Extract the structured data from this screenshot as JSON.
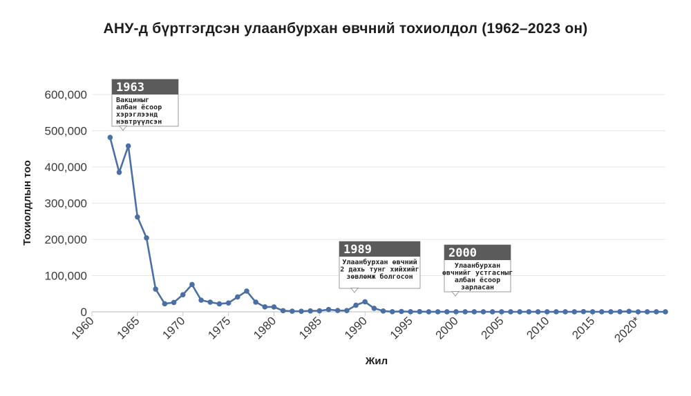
{
  "title": "АНУ-д бүртгэгдсэн улаанбурхан өвчний тохиолдол (1962–2023 он)",
  "colors": {
    "line": "#4a6fa5",
    "grid": "#e6e6e6",
    "axis": "#c8c8c8",
    "callout_header": "#5b5b5b",
    "callout_body": "#ffffff",
    "callout_border": "#9a9a9a"
  },
  "chart_data": {
    "type": "line",
    "title": "АНУ-д бүртгэгдсэн улаанбурхан өвчний тохиолдол (1962–2023 он)",
    "xlabel": "Жил",
    "ylabel": "Тохиолдлын тоо",
    "xlim": [
      1960,
      2023
    ],
    "ylim": [
      0,
      600000
    ],
    "grid": true,
    "x_ticks": [
      1960,
      1965,
      1970,
      1975,
      1980,
      1985,
      1990,
      1995,
      2000,
      2005,
      2010,
      2015,
      2020
    ],
    "x_tick_labels": [
      "1960",
      "1965",
      "1970",
      "1975",
      "1980",
      "1985",
      "1990",
      "1995",
      "2000",
      "2005",
      "2010",
      "2015",
      "2020*"
    ],
    "y_ticks": [
      0,
      100000,
      200000,
      300000,
      400000,
      500000,
      600000
    ],
    "y_tick_labels": [
      "0",
      "100,000",
      "200,000",
      "300,000",
      "400,000",
      "500,000",
      "600,000"
    ],
    "series": [
      {
        "x": [
          1962,
          1963,
          1964,
          1965,
          1966,
          1967,
          1968,
          1969,
          1970,
          1971,
          1972,
          1973,
          1974,
          1975,
          1976,
          1977,
          1978,
          1979,
          1980,
          1981,
          1982,
          1983,
          1984,
          1985,
          1986,
          1987,
          1988,
          1989,
          1990,
          1991,
          1992,
          1993,
          1994,
          1995,
          1996,
          1997,
          1998,
          1999,
          2000,
          2001,
          2002,
          2003,
          2004,
          2005,
          2006,
          2007,
          2008,
          2009,
          2010,
          2011,
          2012,
          2013,
          2014,
          2015,
          2016,
          2017,
          2018,
          2019,
          2020,
          2021,
          2022,
          2023
        ],
        "values": [
          481530,
          385156,
          458083,
          261904,
          204136,
          62705,
          22231,
          25826,
          47351,
          75290,
          32275,
          26690,
          22094,
          24374,
          41126,
          57345,
          26871,
          13597,
          13506,
          3124,
          1714,
          1497,
          2587,
          2822,
          6282,
          3655,
          3396,
          18193,
          27786,
          9643,
          2237,
          312,
          963,
          309,
          508,
          138,
          100,
          100,
          86,
          116,
          44,
          56,
          37,
          66,
          55,
          43,
          140,
          71,
          63,
          220,
          55,
          187,
          667,
          188,
          86,
          120,
          375,
          1274,
          13,
          49,
          121,
          59
        ]
      }
    ],
    "annotations": [
      {
        "x": 1963,
        "year": "1963",
        "lines": [
          "Вакциныг",
          "албан ёсоор",
          "хэрэглээнд",
          "нэвтрүүлсэн"
        ]
      },
      {
        "x": 1989,
        "year": "1989",
        "lines": [
          "Улаанбурхан өвчний",
          "2 дахь тунг хийхийг",
          "зөвлөмж болгосон"
        ]
      },
      {
        "x": 2000,
        "year": "2000",
        "lines": [
          "Улаанбурхан",
          "өвчнийг устгасныг",
          "албан ёсоор",
          "зарласан"
        ]
      }
    ]
  }
}
